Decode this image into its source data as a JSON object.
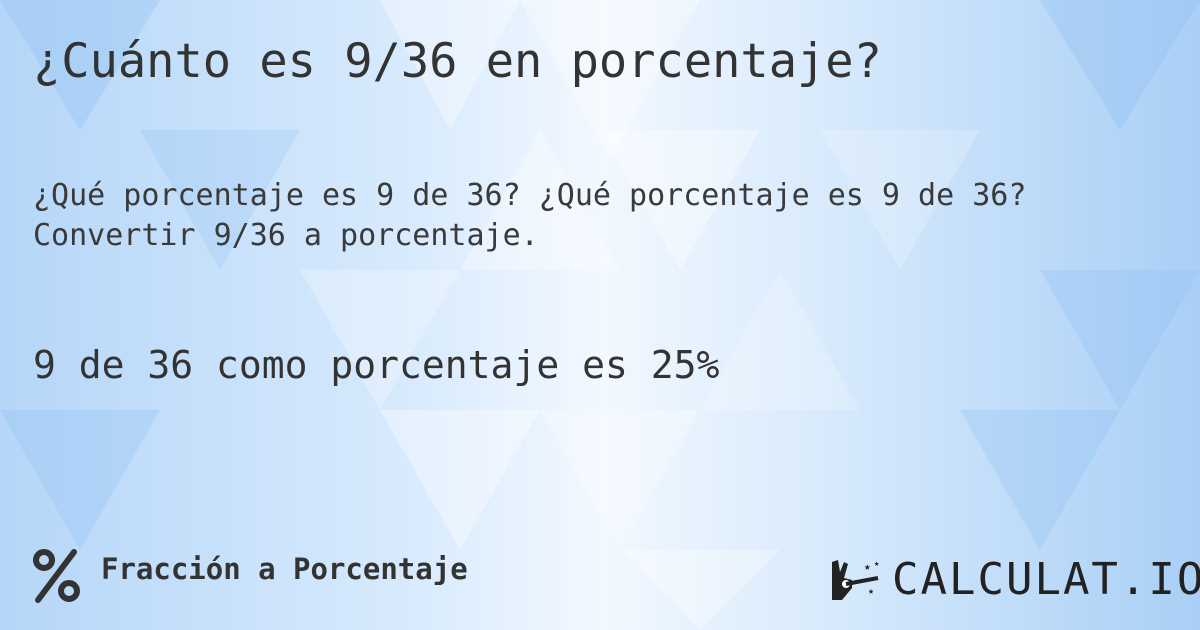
{
  "title": "¿Cuánto es 9/36 en porcentaje?",
  "question_line1": "¿Qué porcentaje es 9 de 36? ¿Qué porcentaje es 9 de 36?",
  "question_line2": "Convertir 9/36 a porcentaje.",
  "answer": "9 de 36 como porcentaje es 25%",
  "footer": {
    "category_icon": "percent-icon",
    "category_label": "Fracción a Porcentaje"
  },
  "logo": {
    "icon": "magic-hand-icon",
    "text": "CALCULAT.IO"
  },
  "colors": {
    "background_accent": "#a9cff6",
    "text": "#333333"
  }
}
